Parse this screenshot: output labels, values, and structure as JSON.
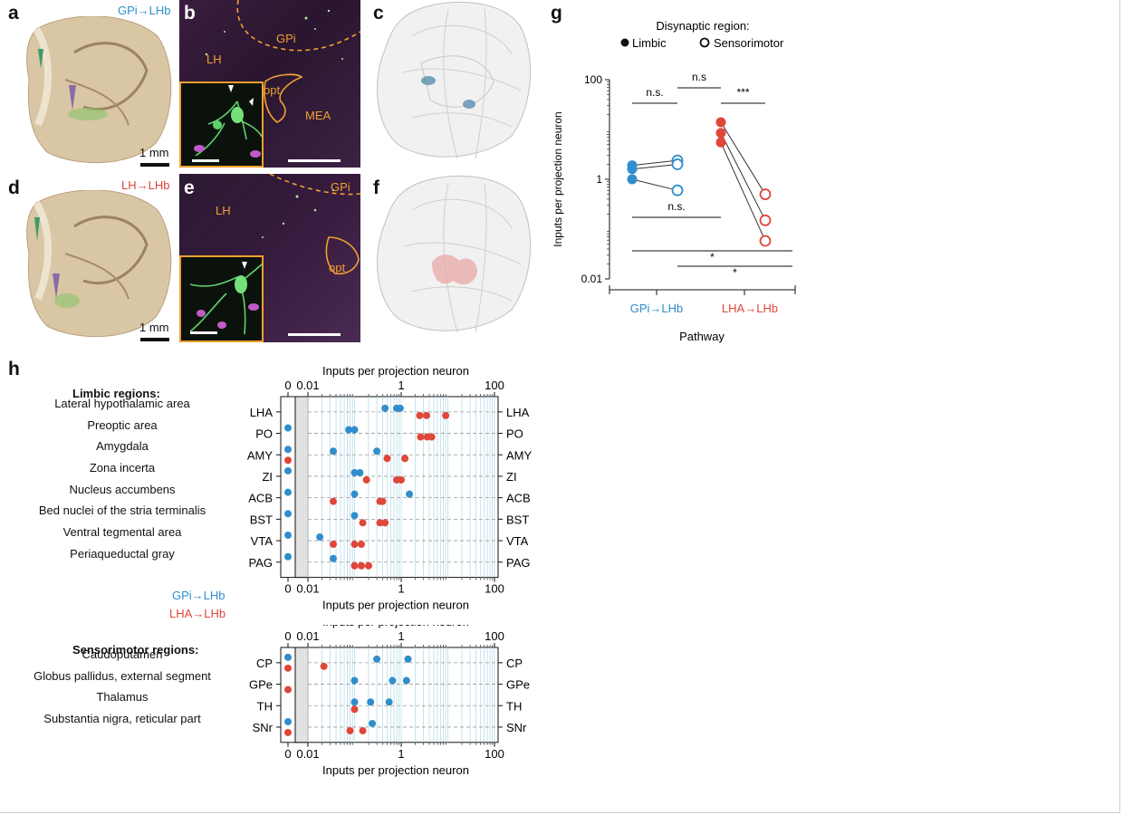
{
  "panels": {
    "a": {
      "letter": "a",
      "pathway_label": "GPi→LHb",
      "scale_label": "1 mm"
    },
    "b": {
      "letter": "b",
      "regions": {
        "gpi": "GPi",
        "lh": "LH",
        "opt": "opt",
        "mea": "MEA"
      }
    },
    "c": {
      "letter": "c"
    },
    "d": {
      "letter": "d",
      "pathway_label": "LH→LHb",
      "scale_label": "1 mm"
    },
    "e": {
      "letter": "e",
      "regions": {
        "gpi": "GPi",
        "lh": "LH",
        "opt": "opt"
      }
    },
    "f": {
      "letter": "f"
    },
    "g": {
      "letter": "g"
    },
    "h": {
      "letter": "h"
    }
  },
  "colors": {
    "gpi": "#2f8ecb",
    "lha": "#e0463a",
    "orange": "#f0a030",
    "grid": "#b8dde9"
  },
  "chart_data": [
    {
      "id": "g",
      "type": "scatter",
      "title": "",
      "legend_title": "Disynaptic region:",
      "legend": [
        "Limbic",
        "Sensorimotor"
      ],
      "ylabel": "Inputs per projection neuron",
      "xlabel": "Pathway",
      "yscale": "log",
      "ylim": [
        0.01,
        100
      ],
      "yticks": [
        "100",
        "1",
        "0.01"
      ],
      "categories": [
        "GPi→LHb",
        "LHA→LHb"
      ],
      "series": [
        {
          "name": "GPi→LHb",
          "limbic": [
            1.9,
            1.6,
            1.0
          ],
          "sensorimotor": [
            2.4,
            2.0,
            0.6
          ]
        },
        {
          "name": "LHA→LHb",
          "limbic": [
            14,
            8.5,
            5.5
          ],
          "sensorimotor": [
            0.5,
            0.15,
            0.058
          ]
        }
      ],
      "significance": [
        {
          "label": "n.s.",
          "between": "GPi limbic vs GPi sensorimotor"
        },
        {
          "label": "n.s",
          "between": "GPi→LHb vs LHA→LHb"
        },
        {
          "label": "***",
          "between": "LHA limbic vs LHA sensorimotor"
        },
        {
          "label": "n.s.",
          "between": "GPi limbic vs GPi sensorimotor (below)"
        },
        {
          "label": "*",
          "between": "GPi limbic vs LHA sensorimotor"
        },
        {
          "label": "*",
          "between": "GPi sensorimotor vs LHA sensorimotor"
        }
      ]
    },
    {
      "id": "h-limbic",
      "type": "scatter",
      "title": "Limbic regions:",
      "xlabel": "Inputs per projection neuron",
      "xscale": "log",
      "xticks": [
        "0",
        "0.01",
        "1",
        "100"
      ],
      "legend": [
        "GPi→LHb",
        "LHA→LHb"
      ],
      "rows": [
        {
          "name": "Lateral hypothalamic area",
          "abbr": "LHA",
          "gpi": [
            0.45,
            0.8,
            0.95
          ],
          "lha": [
            2.5,
            3.5,
            9
          ]
        },
        {
          "name": "Preoptic area",
          "abbr": "PO",
          "gpi": [
            0,
            0.075,
            0.1
          ],
          "lha": [
            2.6,
            3.6,
            4.5
          ]
        },
        {
          "name": "Amygdala",
          "abbr": "AMY",
          "gpi": [
            0,
            0.035,
            0.3
          ],
          "lha": [
            0,
            0.5,
            1.2
          ]
        },
        {
          "name": "Zona incerta",
          "abbr": "ZI",
          "gpi": [
            0,
            0.1,
            0.13
          ],
          "lha": [
            0.18,
            0.8,
            1.0
          ]
        },
        {
          "name": "Nucleus accumbens",
          "abbr": "ACB",
          "gpi": [
            0,
            0.1,
            1.5
          ],
          "lha": [
            0.035,
            0.35,
            0.4
          ]
        },
        {
          "name": "Bed nuclei of the stria terminalis",
          "abbr": "BST",
          "gpi": [
            0,
            0.1
          ],
          "lha": [
            0.15,
            0.35,
            0.45
          ]
        },
        {
          "name": "Ventral tegmental area",
          "abbr": "VTA",
          "gpi": [
            0,
            0.018
          ],
          "lha": [
            0.035,
            0.1,
            0.14
          ]
        },
        {
          "name": "Periaqueductal gray",
          "abbr": "PAG",
          "gpi": [
            0,
            0.035
          ],
          "lha": [
            0.1,
            0.14,
            0.2
          ]
        }
      ]
    },
    {
      "id": "h-sensorimotor",
      "type": "scatter",
      "title": "Sensorimotor regions:",
      "xlabel": "Inputs per projection neuron",
      "xscale": "log",
      "xticks": [
        "0",
        "0.01",
        "1",
        "100"
      ],
      "legend": [
        "GPi→LHb",
        "LHA→LHb"
      ],
      "rows": [
        {
          "name": "Caudoputamen",
          "abbr": "CP",
          "gpi": [
            0,
            0.3,
            1.4
          ],
          "lha": [
            0,
            0.022
          ]
        },
        {
          "name": "Globus pallidus, external segment",
          "abbr": "GPe",
          "gpi": [
            0.1,
            0.65,
            1.3
          ],
          "lha": [
            0
          ]
        },
        {
          "name": "Thalamus",
          "abbr": "TH",
          "gpi": [
            0.1,
            0.22,
            0.55
          ],
          "lha": [
            0.1
          ]
        },
        {
          "name": "Substantia nigra, reticular part",
          "abbr": "SNr",
          "gpi": [
            0,
            0.24
          ],
          "lha": [
            0,
            0.08,
            0.15
          ]
        }
      ]
    }
  ]
}
